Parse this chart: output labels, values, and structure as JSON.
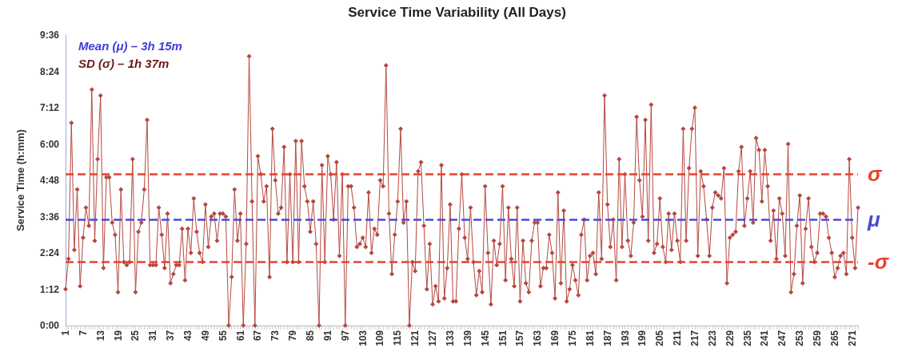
{
  "chart_data": {
    "type": "line",
    "title": "Service Time Variability (All Days)",
    "ylabel": "Service Time (h:mm)",
    "categories": [
      "1",
      null,
      null,
      null,
      null,
      null,
      "7",
      null,
      null,
      null,
      null,
      null,
      "13",
      null,
      null,
      null,
      null,
      null,
      "19",
      null,
      null,
      null,
      null,
      null,
      "25",
      null,
      null,
      null,
      null,
      null,
      "31",
      null,
      null,
      null,
      null,
      null,
      "37",
      null,
      null,
      null,
      null,
      null,
      "43",
      null,
      null,
      null,
      null,
      null,
      "49",
      null,
      null,
      null,
      null,
      null,
      "55",
      null,
      null,
      null,
      null,
      null,
      "61",
      null,
      null,
      null,
      null,
      null,
      "67",
      null,
      null,
      null,
      null,
      null,
      "73",
      null,
      null,
      null,
      null,
      null,
      "79",
      null,
      null,
      null,
      null,
      null,
      "85",
      null,
      null,
      null,
      null,
      null,
      "91",
      null,
      null,
      null,
      null,
      null,
      "97",
      null,
      null,
      null,
      null,
      null,
      "103",
      null,
      null,
      null,
      null,
      null,
      "109",
      null,
      null,
      null,
      null,
      null,
      "115",
      null,
      null,
      null,
      null,
      null,
      "121",
      null,
      null,
      null,
      null,
      null,
      "127",
      null,
      null,
      null,
      null,
      null,
      "133",
      null,
      null,
      null,
      null,
      null,
      "139",
      null,
      null,
      null,
      null,
      null,
      "145",
      null,
      null,
      null,
      null,
      null,
      "151",
      null,
      null,
      null,
      null,
      null,
      "157",
      null,
      null,
      null,
      null,
      null,
      "163",
      null,
      null,
      null,
      null,
      null,
      "169",
      null,
      null,
      null,
      null,
      null,
      "175",
      null,
      null,
      null,
      null,
      null,
      "181",
      null,
      null,
      null,
      null,
      null,
      "187",
      null,
      null,
      null,
      null,
      null,
      "193",
      null,
      null,
      null,
      null,
      null,
      "199",
      null,
      null,
      null,
      null,
      null,
      "205",
      null,
      null,
      null,
      null,
      null,
      "211",
      null,
      null,
      null,
      null,
      null,
      "217",
      null,
      null,
      null,
      null,
      null,
      "223",
      null,
      null,
      null,
      null,
      null,
      "229",
      null,
      null,
      null,
      null,
      null,
      "235",
      null,
      null,
      null,
      null,
      null,
      "241",
      null,
      null,
      null,
      null,
      null,
      "247",
      null,
      null,
      null,
      null,
      null,
      "253",
      null,
      null,
      null,
      null,
      null,
      "259",
      null,
      null,
      null,
      null,
      null,
      "265",
      null,
      null,
      null,
      null,
      null,
      "271",
      null,
      null
    ],
    "series": [
      {
        "color": "#b5473f",
        "values": [
          1.2,
          2.2,
          6.7,
          2.5,
          4.5,
          1.3,
          2.9,
          3.9,
          3.3,
          7.8,
          2.8,
          5.5,
          7.6,
          1.9,
          4.9,
          4.9,
          3.4,
          3.0,
          1.1,
          4.5,
          2.1,
          2.0,
          2.1,
          5.5,
          1.1,
          3.1,
          3.4,
          4.5,
          6.8,
          2.0,
          2.0,
          2.0,
          3.9,
          3.0,
          1.9,
          3.7,
          1.4,
          1.7,
          2.0,
          2.0,
          3.2,
          1.5,
          3.2,
          2.4,
          4.2,
          3.1,
          2.4,
          2.1,
          4.0,
          2.6,
          3.6,
          3.7,
          2.8,
          3.7,
          3.7,
          3.6,
          0,
          1.6,
          4.5,
          2.8,
          3.7,
          0,
          2.7,
          8.9,
          4.1,
          0,
          5.6,
          5.0,
          4.1,
          4.6,
          1.6,
          6.5,
          4.8,
          3.7,
          3.9,
          5.9,
          2.1,
          5.0,
          2.1,
          6.1,
          2.1,
          6.1,
          4.6,
          4.1,
          3.1,
          4.1,
          2.7,
          0,
          5.3,
          2.1,
          5.6,
          5.0,
          3.5,
          5.4,
          2.3,
          5.0,
          0,
          4.6,
          4.6,
          3.9,
          2.6,
          2.7,
          2.9,
          2.6,
          4.4,
          2.4,
          3.2,
          3.0,
          4.8,
          4.6,
          8.6,
          3.7,
          1.7,
          3.0,
          4.1,
          6.5,
          3.4,
          4.1,
          0,
          2.1,
          1.8,
          5.1,
          5.4,
          3.3,
          1.2,
          2.7,
          0.7,
          1.3,
          0.8,
          5.3,
          0.9,
          1.9,
          4.0,
          0.8,
          0.8,
          3.2,
          5.0,
          2.9,
          2.2,
          3.9,
          2.1,
          1.0,
          1.8,
          1.1,
          4.6,
          2.4,
          0.7,
          2.8,
          2.0,
          2.7,
          4.6,
          1.5,
          3.9,
          2.2,
          1.3,
          3.9,
          0.8,
          2.8,
          1.4,
          1.1,
          2.8,
          3.4,
          3.4,
          1.3,
          1.9,
          1.9,
          3.0,
          2.4,
          0.9,
          4.4,
          1.4,
          3.8,
          0.8,
          1.2,
          2.0,
          1.5,
          1.0,
          3.0,
          3.5,
          1.5,
          2.3,
          2.4,
          1.7,
          4.4,
          2.2,
          7.6,
          4.0,
          2.6,
          3.5,
          1.5,
          5.5,
          2.6,
          5.0,
          2.8,
          2.3,
          3.4,
          6.9,
          4.8,
          3.6,
          6.8,
          2.8,
          7.3,
          2.4,
          2.7,
          4.2,
          2.6,
          2.1,
          3.7,
          2.5,
          3.7,
          2.8,
          2.1,
          6.5,
          2.8,
          5.2,
          6.5,
          7.2,
          2.3,
          5.1,
          4.6,
          3.5,
          2.3,
          3.9,
          4.4,
          4.3,
          4.2,
          5.2,
          1.4,
          2.9,
          3.0,
          3.1,
          5.1,
          5.9,
          3.3,
          4.2,
          5.1,
          3.4,
          6.2,
          5.8,
          4.1,
          5.8,
          4.6,
          2.8,
          3.8,
          2.2,
          4.2,
          3.7,
          2.3,
          6.0,
          1.1,
          1.7,
          3.3,
          4.3,
          1.4,
          3.2,
          4.2,
          2.6,
          2.1,
          2.4,
          3.7,
          3.7,
          3.6,
          2.9,
          2.4,
          1.6,
          1.9,
          2.3,
          2.4,
          1.7,
          5.5,
          2.9,
          1.9,
          3.9
        ]
      }
    ],
    "ylim": [
      0,
      9.6
    ],
    "yticks": [
      {
        "value": 0,
        "label": "0:00"
      },
      {
        "value": 1.2,
        "label": "1:12"
      },
      {
        "value": 2.4,
        "label": "2:24"
      },
      {
        "value": 3.6,
        "label": "3:36"
      },
      {
        "value": 4.8,
        "label": "4:48"
      },
      {
        "value": 6.0,
        "label": "6:00"
      },
      {
        "value": 7.2,
        "label": "7:12"
      },
      {
        "value": 8.4,
        "label": "8:24"
      },
      {
        "value": 9.6,
        "label": "9:36"
      }
    ],
    "ref_lines": [
      {
        "axis": "y",
        "value": 5.0,
        "label": "σ",
        "color": "#e8412c",
        "line_style": "dashed"
      },
      {
        "axis": "y",
        "value": 3.5,
        "label": "μ",
        "color": "#4a4ad6",
        "line_style": "dashed"
      },
      {
        "axis": "y",
        "value": 2.1,
        "label": "-σ",
        "color": "#e8412c",
        "line_style": "dashed"
      }
    ],
    "annotations": [
      "Mean (μ) – 3h 15m",
      "SD (σ) – 1h 37m"
    ],
    "marker": "diamond",
    "line_style": "solid",
    "grid": false
  }
}
